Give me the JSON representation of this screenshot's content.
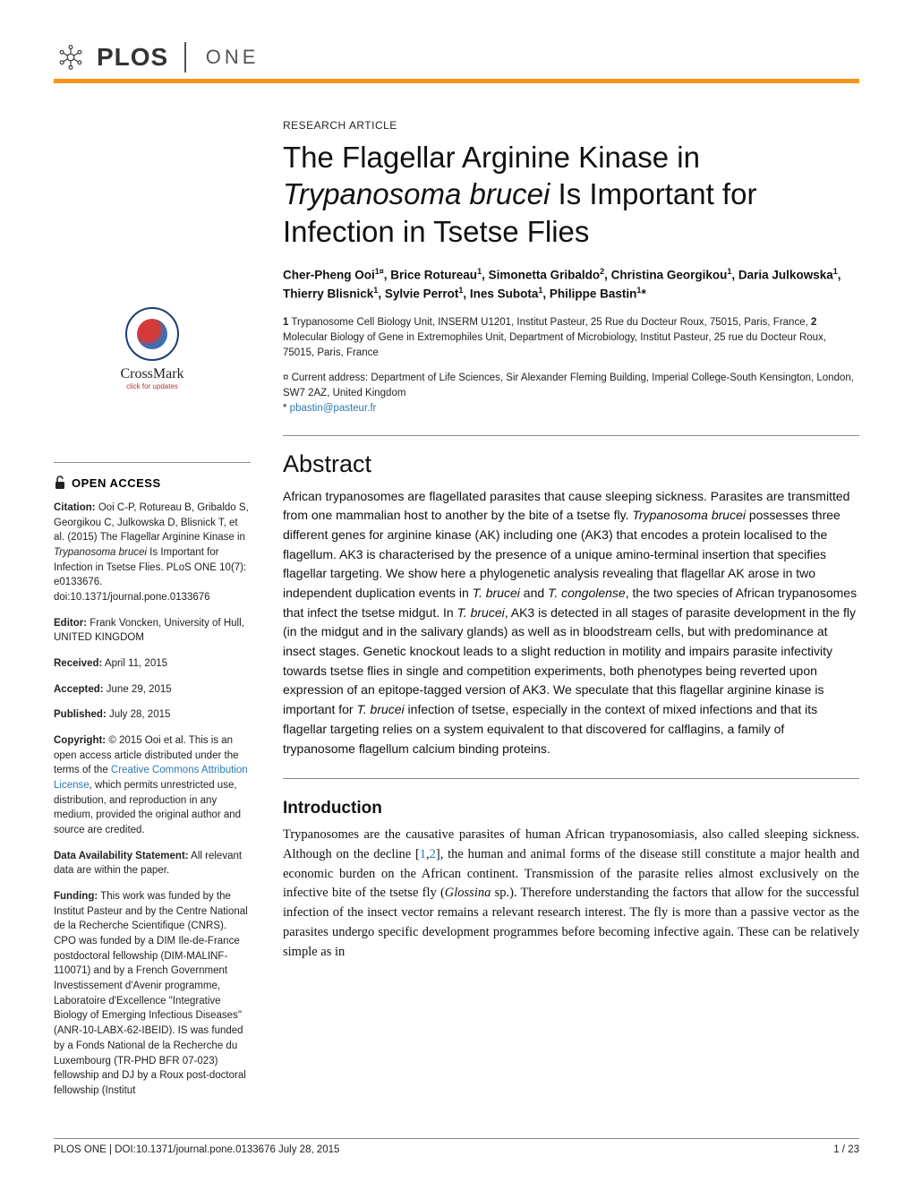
{
  "brand": {
    "plos": "PLOS",
    "one": "ONE"
  },
  "crossmark": {
    "label": "CrossMark",
    "sub": "click for updates"
  },
  "open_access": {
    "label": "OPEN ACCESS"
  },
  "sidebar": {
    "citation_label": "Citation:",
    "citation_text": " Ooi C-P, Rotureau B, Gribaldo S, Georgikou C, Julkowska D, Blisnick T, et al. (2015) The Flagellar Arginine Kinase in ",
    "citation_ital": "Trypanosoma brucei",
    "citation_text2": " Is Important for Infection in Tsetse Flies. PLoS ONE 10(7): e0133676. doi:10.1371/journal.pone.0133676",
    "editor_label": "Editor:",
    "editor_text": " Frank Voncken, University of Hull, UNITED KINGDOM",
    "received_label": "Received:",
    "received_text": " April 11, 2015",
    "accepted_label": "Accepted:",
    "accepted_text": " June 29, 2015",
    "published_label": "Published:",
    "published_text": " July 28, 2015",
    "copyright_label": "Copyright:",
    "copyright_text1": " © 2015 Ooi et al. This is an open access article distributed under the terms of the ",
    "copyright_link": "Creative Commons Attribution License",
    "copyright_text2": ", which permits unrestricted use, distribution, and reproduction in any medium, provided the original author and source are credited.",
    "data_label": "Data Availability Statement:",
    "data_text": " All relevant data are within the paper.",
    "funding_label": "Funding:",
    "funding_text": " This work was funded by the Institut Pasteur and by the Centre National de la Recherche Scientifique (CNRS). CPO was funded by a DIM Ile-de-France postdoctoral fellowship (DIM-MALINF-110071) and by a French Government Investissement d'Avenir programme, Laboratoire d'Excellence \"Integrative Biology of Emerging Infectious Diseases\" (ANR-10-LABX-62-IBEID). IS was funded by a Fonds National de la Recherche du Luxembourg (TR-PHD BFR 07-023) fellowship and DJ by a Roux post-doctoral fellowship (Institut"
  },
  "article": {
    "type": "RESEARCH ARTICLE",
    "title_a": "The Flagellar Arginine Kinase in ",
    "title_ital1": "Trypanosoma brucei",
    "title_b": " Is Important for Infection in Tsetse Flies",
    "authors_html": "Cher-Pheng Ooi<sup>1¤</sup>, Brice Rotureau<sup>1</sup>, Simonetta Gribaldo<sup>2</sup>, Christina Georgikou<sup>1</sup>, Daria Julkowska<sup>1</sup>, Thierry Blisnick<sup>1</sup>, Sylvie Perrot<sup>1</sup>, Ines Subota<sup>1</sup>, Philippe Bastin<sup>1</sup>*",
    "affiliations_html": "<span class=\"affnum\">1</span> Trypanosome Cell Biology Unit, INSERM U1201, Institut Pasteur, 25 Rue du Docteur Roux, 75015, Paris, France, <span class=\"affnum\">2</span> Molecular Biology of Gene in Extremophiles Unit, Department of Microbiology, Institut Pasteur, 25 rue du Docteur Roux, 75015, Paris, France",
    "curr_addr": "¤ Current address: Department of Life Sciences, Sir Alexander Fleming Building, Imperial College-South Kensington, London, SW7 2AZ, United Kingdom",
    "corr_star": "* ",
    "corr_email": "pbastin@pasteur.fr",
    "abstract_heading": "Abstract",
    "abstract_html": "African trypanosomes are flagellated parasites that cause sleeping sickness. Parasites are transmitted from one mammalian host to another by the bite of a tsetse fly. <span class=\"ital\">Trypanosoma brucei</span> possesses three different genes for arginine kinase (AK) including one (AK3) that encodes a protein localised to the flagellum. AK3 is characterised by the presence of a unique amino-terminal insertion that specifies flagellar targeting. We show here a phylogenetic analysis revealing that flagellar AK arose in two independent duplication events in <span class=\"ital\">T. brucei</span> and <span class=\"ital\">T. congolense</span>, the two species of African trypanosomes that infect the tsetse midgut. In <span class=\"ital\">T. brucei</span>, AK3 is detected in all stages of parasite development in the fly (in the midgut and in the salivary glands) as well as in bloodstream cells, but with predominance at insect stages. Genetic knockout leads to a slight reduction in motility and impairs parasite infectivity towards tsetse flies in single and competition experiments, both phenotypes being reverted upon expression of an epitope-tagged version of AK3. We speculate that this flagellar arginine kinase is important for <span class=\"ital\">T. brucei</span> infection of tsetse, especially in the context of mixed infections and that its flagellar targeting relies on a system equivalent to that discovered for calflagins, a family of trypanosome flagellum calcium binding proteins.",
    "intro_heading": "Introduction",
    "intro_html": "Trypanosomes are the causative parasites of human African trypanosomiasis, also called sleeping sickness. Although on the decline [<span class=\"ref\">1</span>,<span class=\"ref\">2</span>], the human and animal forms of the disease still constitute a major health and economic burden on the African continent. Transmission of the parasite relies almost exclusively on the infective bite of the tsetse fly (<span class=\"ital\">Glossina</span> sp.). Therefore understanding the factors that allow for the successful infection of the insect vector remains a relevant research interest. The fly is more than a passive vector as the parasites undergo specific development programmes before becoming infective again. These can be relatively simple as in"
  },
  "footer": {
    "left": "PLOS ONE | DOI:10.1371/journal.pone.0133676    July 28, 2015",
    "right": "1 / 23"
  },
  "colors": {
    "accent": "#f7941e",
    "link": "#2a7ab0",
    "text": "#111111",
    "rule": "#888888"
  }
}
